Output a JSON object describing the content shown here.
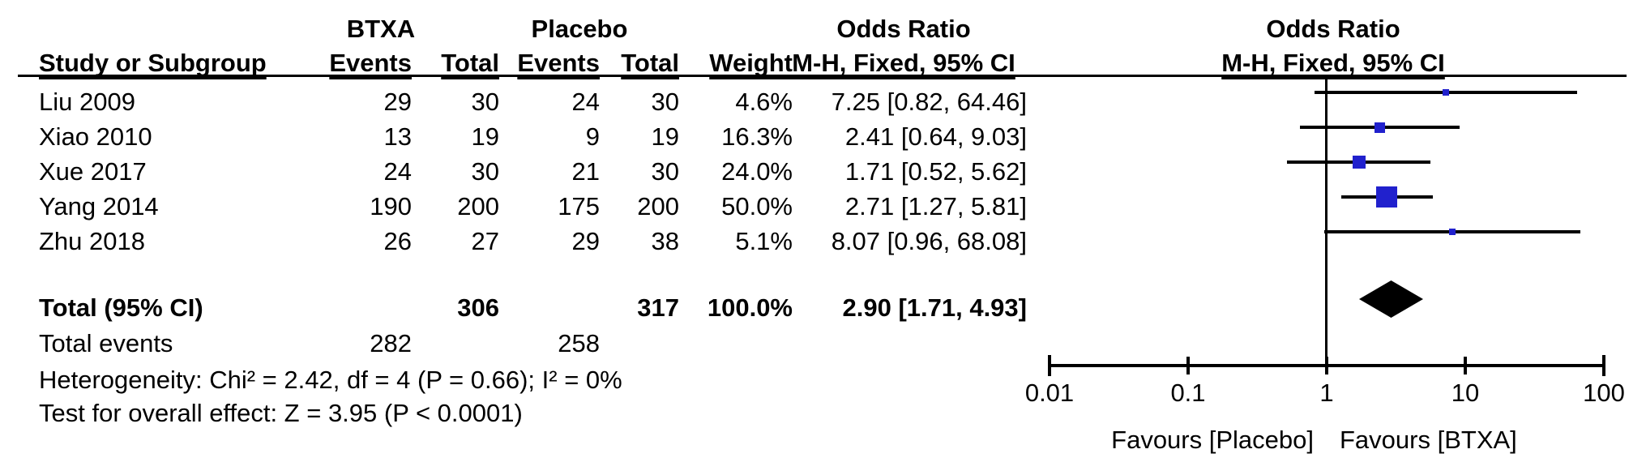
{
  "table": {
    "group_btxa": "BTXA",
    "group_placebo": "Placebo",
    "col_study": "Study or Subgroup",
    "col_events": "Events",
    "col_total": "Total",
    "col_weight": "Weight",
    "or_header": "Odds Ratio",
    "mh_header": "M-H, Fixed, 95% CI"
  },
  "chart_data": {
    "type": "forest_plot",
    "effect_measure": "Odds Ratio",
    "method": "M-H, Fixed, 95% CI",
    "studies": [
      {
        "name": "Liu 2009",
        "events_btxa": "29",
        "total_btxa": "30",
        "events_placebo": "24",
        "total_placebo": "30",
        "weight": "4.6%",
        "weight_pct": 4.6,
        "or": 7.25,
        "ci_low": 0.82,
        "ci_high": 64.46,
        "ci_text": "7.25 [0.82, 64.46]"
      },
      {
        "name": "Xiao 2010",
        "events_btxa": "13",
        "total_btxa": "19",
        "events_placebo": "9",
        "total_placebo": "19",
        "weight": "16.3%",
        "weight_pct": 16.3,
        "or": 2.41,
        "ci_low": 0.64,
        "ci_high": 9.03,
        "ci_text": "2.41 [0.64, 9.03]"
      },
      {
        "name": "Xue 2017",
        "events_btxa": "24",
        "total_btxa": "30",
        "events_placebo": "21",
        "total_placebo": "30",
        "weight": "24.0%",
        "weight_pct": 24.0,
        "or": 1.71,
        "ci_low": 0.52,
        "ci_high": 5.62,
        "ci_text": "1.71 [0.52, 5.62]"
      },
      {
        "name": "Yang 2014",
        "events_btxa": "190",
        "total_btxa": "200",
        "events_placebo": "175",
        "total_placebo": "200",
        "weight": "50.0%",
        "weight_pct": 50.0,
        "or": 2.71,
        "ci_low": 1.27,
        "ci_high": 5.81,
        "ci_text": "2.71 [1.27, 5.81]"
      },
      {
        "name": "Zhu 2018",
        "events_btxa": "26",
        "total_btxa": "27",
        "events_placebo": "29",
        "total_placebo": "38",
        "weight": "5.1%",
        "weight_pct": 5.1,
        "or": 8.07,
        "ci_low": 0.96,
        "ci_high": 68.08,
        "ci_text": "8.07 [0.96, 68.08]"
      }
    ],
    "total": {
      "label": "Total (95% CI)",
      "total_btxa": "306",
      "total_placebo": "317",
      "weight": "100.0%",
      "or": 2.9,
      "ci_low": 1.71,
      "ci_high": 4.93,
      "ci_text": "2.90 [1.71, 4.93]"
    },
    "total_events": {
      "label": "Total events",
      "events_btxa": "282",
      "events_placebo": "258"
    },
    "footnotes": {
      "heterogeneity": "Heterogeneity: Chi² = 2.42, df = 4 (P = 0.66); I² = 0%",
      "overall_effect": "Test for overall effect: Z = 3.95 (P < 0.0001)"
    },
    "x_axis": {
      "scale": "log",
      "ticks": [
        0.01,
        0.1,
        1,
        10,
        100
      ],
      "tick_labels": [
        "0.01",
        "0.1",
        "1",
        "10",
        "100"
      ],
      "favours_left": "Favours [Placebo]",
      "favours_right": "Favours [BTXA]"
    },
    "colors": {
      "marker": "#2121CD",
      "diamond": "#000000",
      "line": "#000000"
    }
  }
}
